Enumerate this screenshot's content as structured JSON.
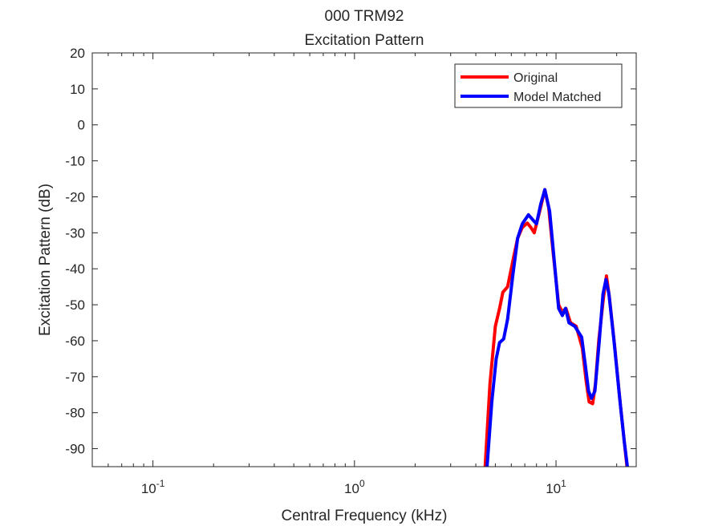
{
  "chart_data": {
    "type": "line",
    "title": "000 TRM92",
    "subtitle": "Excitation Pattern",
    "xlabel": "Central Frequency (kHz)",
    "ylabel": "Excitation Pattern (dB)",
    "xscale": "log",
    "xlim": [
      0.05,
      25
    ],
    "ylim": [
      -95,
      20
    ],
    "yticks": [
      20,
      10,
      0,
      -10,
      -20,
      -30,
      -40,
      -50,
      -60,
      -70,
      -80,
      -90
    ],
    "ytick_labels": [
      "20",
      "10",
      "0",
      "-10",
      "-20",
      "-30",
      "-40",
      "-50",
      "-60",
      "-70",
      "-80",
      "-90"
    ],
    "xticks": [
      {
        "base": "10",
        "exp": "-1",
        "value": 0.1
      },
      {
        "base": "10",
        "exp": "0",
        "value": 1
      },
      {
        "base": "10",
        "exp": "1",
        "value": 10
      }
    ],
    "legend": {
      "placement": "top-right"
    },
    "grid": false,
    "series": [
      {
        "name": "Original",
        "color": "#ff0000",
        "points": [
          [
            4.45,
            -95
          ],
          [
            4.7,
            -72
          ],
          [
            5.0,
            -56
          ],
          [
            5.25,
            -51
          ],
          [
            5.45,
            -46.5
          ],
          [
            5.75,
            -45
          ],
          [
            6.1,
            -38
          ],
          [
            6.45,
            -31.5
          ],
          [
            6.8,
            -28.5
          ],
          [
            7.2,
            -27.3
          ],
          [
            7.5,
            -28.5
          ],
          [
            7.8,
            -30
          ],
          [
            8.3,
            -24
          ],
          [
            8.8,
            -18
          ],
          [
            9.2,
            -23
          ],
          [
            9.7,
            -36
          ],
          [
            10.3,
            -50
          ],
          [
            10.75,
            -52
          ],
          [
            11.2,
            -51
          ],
          [
            11.8,
            -55
          ],
          [
            12.6,
            -56
          ],
          [
            13.5,
            -62
          ],
          [
            14.1,
            -71
          ],
          [
            14.6,
            -77
          ],
          [
            15.2,
            -77.5
          ],
          [
            15.7,
            -72
          ],
          [
            16.3,
            -60
          ],
          [
            17.2,
            -48
          ],
          [
            17.8,
            -42
          ],
          [
            18.4,
            -48
          ],
          [
            19.5,
            -61
          ],
          [
            20.8,
            -77
          ],
          [
            21.8,
            -88
          ],
          [
            22.5,
            -95
          ]
        ]
      },
      {
        "name": "Model Matched",
        "color": "#0000ff",
        "points": [
          [
            4.55,
            -95
          ],
          [
            4.8,
            -77
          ],
          [
            5.05,
            -65
          ],
          [
            5.25,
            -60.5
          ],
          [
            5.5,
            -59.5
          ],
          [
            5.75,
            -54
          ],
          [
            6.1,
            -42
          ],
          [
            6.45,
            -31.5
          ],
          [
            6.8,
            -27.5
          ],
          [
            7.3,
            -25
          ],
          [
            7.7,
            -26.5
          ],
          [
            8.0,
            -27.5
          ],
          [
            8.4,
            -22
          ],
          [
            8.8,
            -18
          ],
          [
            9.3,
            -24
          ],
          [
            9.7,
            -35
          ],
          [
            10.3,
            -51
          ],
          [
            10.75,
            -53
          ],
          [
            11.15,
            -51
          ],
          [
            11.6,
            -55
          ],
          [
            12.4,
            -56
          ],
          [
            13.4,
            -59
          ],
          [
            14.0,
            -67
          ],
          [
            14.5,
            -74
          ],
          [
            15.0,
            -76
          ],
          [
            15.6,
            -74
          ],
          [
            16.4,
            -60
          ],
          [
            17.1,
            -47
          ],
          [
            17.7,
            -43
          ],
          [
            18.3,
            -47
          ],
          [
            19.4,
            -60
          ],
          [
            20.7,
            -76
          ],
          [
            21.8,
            -88
          ],
          [
            22.6,
            -95
          ]
        ]
      }
    ]
  }
}
